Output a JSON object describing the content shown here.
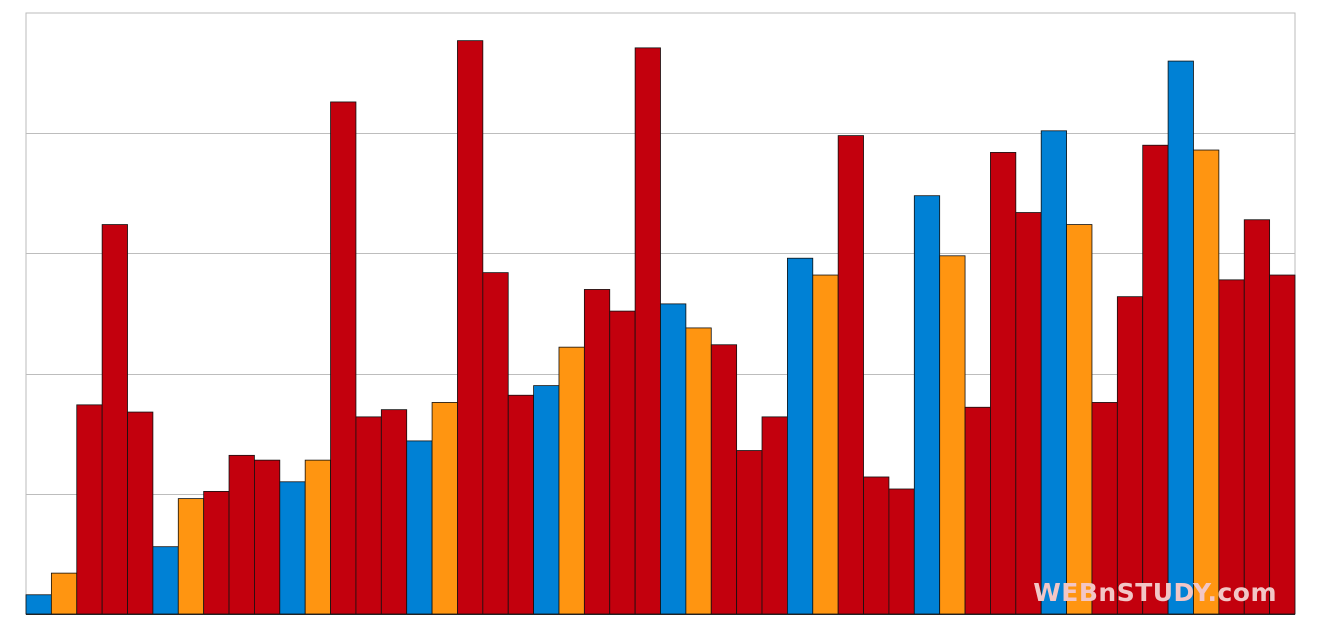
{
  "watermark": "WEBnSTUDY.com",
  "chart_data": {
    "type": "bar",
    "title": "",
    "xlabel": "",
    "ylabel": "",
    "ylim": [
      0,
      5
    ],
    "grid": true,
    "legend": "none",
    "colors": {
      "red": "#c3000d",
      "blue": "#0081d5",
      "orange": "#ff9511"
    },
    "bars": [
      {
        "value": 0.16,
        "color": "blue"
      },
      {
        "value": 0.34,
        "color": "orange"
      },
      {
        "value": 1.74,
        "color": "red"
      },
      {
        "value": 3.24,
        "color": "red"
      },
      {
        "value": 1.68,
        "color": "red"
      },
      {
        "value": 0.56,
        "color": "blue"
      },
      {
        "value": 0.96,
        "color": "orange"
      },
      {
        "value": 1.02,
        "color": "red"
      },
      {
        "value": 1.32,
        "color": "red"
      },
      {
        "value": 1.28,
        "color": "red"
      },
      {
        "value": 1.1,
        "color": "blue"
      },
      {
        "value": 1.28,
        "color": "orange"
      },
      {
        "value": 4.26,
        "color": "red"
      },
      {
        "value": 1.64,
        "color": "red"
      },
      {
        "value": 1.7,
        "color": "red"
      },
      {
        "value": 1.44,
        "color": "blue"
      },
      {
        "value": 1.76,
        "color": "orange"
      },
      {
        "value": 4.77,
        "color": "red"
      },
      {
        "value": 2.84,
        "color": "red"
      },
      {
        "value": 1.82,
        "color": "red"
      },
      {
        "value": 1.9,
        "color": "blue"
      },
      {
        "value": 2.22,
        "color": "orange"
      },
      {
        "value": 2.7,
        "color": "red"
      },
      {
        "value": 2.52,
        "color": "red"
      },
      {
        "value": 4.71,
        "color": "red"
      },
      {
        "value": 2.58,
        "color": "blue"
      },
      {
        "value": 2.38,
        "color": "orange"
      },
      {
        "value": 2.24,
        "color": "red"
      },
      {
        "value": 1.36,
        "color": "red"
      },
      {
        "value": 1.64,
        "color": "red"
      },
      {
        "value": 2.96,
        "color": "blue"
      },
      {
        "value": 2.82,
        "color": "orange"
      },
      {
        "value": 3.98,
        "color": "red"
      },
      {
        "value": 1.14,
        "color": "red"
      },
      {
        "value": 1.04,
        "color": "red"
      },
      {
        "value": 3.48,
        "color": "blue"
      },
      {
        "value": 2.98,
        "color": "orange"
      },
      {
        "value": 1.72,
        "color": "red"
      },
      {
        "value": 3.84,
        "color": "red"
      },
      {
        "value": 3.34,
        "color": "red"
      },
      {
        "value": 4.02,
        "color": "blue"
      },
      {
        "value": 3.24,
        "color": "orange"
      },
      {
        "value": 1.76,
        "color": "red"
      },
      {
        "value": 2.64,
        "color": "red"
      },
      {
        "value": 3.9,
        "color": "red"
      },
      {
        "value": 4.6,
        "color": "blue"
      },
      {
        "value": 3.86,
        "color": "orange"
      },
      {
        "value": 2.78,
        "color": "red"
      },
      {
        "value": 3.28,
        "color": "red"
      },
      {
        "value": 2.82,
        "color": "red"
      }
    ]
  }
}
